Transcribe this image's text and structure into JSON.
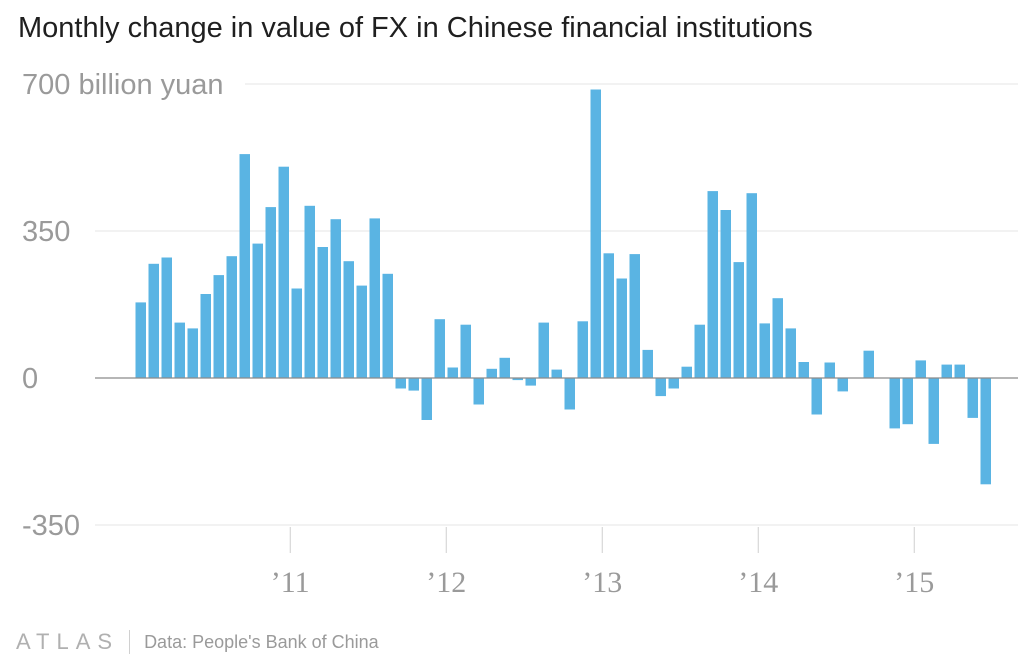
{
  "chart_data": {
    "type": "bar",
    "title": "Monthly change in value of FX in Chinese financial institutions",
    "unit_label": "700 billion yuan",
    "ylim": [
      -350,
      700
    ],
    "y_ticks": [
      {
        "value": 700,
        "label": "700 billion yuan"
      },
      {
        "value": 350,
        "label": "350"
      },
      {
        "value": 0,
        "label": "0"
      },
      {
        "value": -350,
        "label": "-350"
      }
    ],
    "x_ticks": [
      {
        "label": "’11",
        "year": 2011
      },
      {
        "label": "’12",
        "year": 2012
      },
      {
        "label": "’13",
        "year": 2013
      },
      {
        "label": "’14",
        "year": 2014
      },
      {
        "label": "’15",
        "year": 2015
      }
    ],
    "x_start": "2010-01",
    "series": [
      {
        "bar_color": "#5ab4e3",
        "values": [
          180,
          272,
          287,
          132,
          118,
          200,
          245,
          290,
          533,
          320,
          407,
          503,
          213,
          410,
          312,
          378,
          278,
          220,
          380,
          248,
          -25,
          -30,
          -100,
          140,
          25,
          127,
          -63,
          22,
          48,
          -5,
          -18,
          132,
          20,
          -75,
          135,
          687,
          297,
          237,
          295,
          67,
          -43,
          -25,
          27,
          127,
          445,
          400,
          276,
          440,
          130,
          190,
          118,
          38,
          -87,
          37,
          -32,
          0,
          65,
          0,
          -120,
          -110,
          42,
          -157,
          32,
          32,
          -95,
          -253
        ]
      }
    ],
    "grid": true,
    "legend": "none"
  },
  "footer": {
    "brand": "ATLAS",
    "source": "Data: People's Bank of China"
  }
}
